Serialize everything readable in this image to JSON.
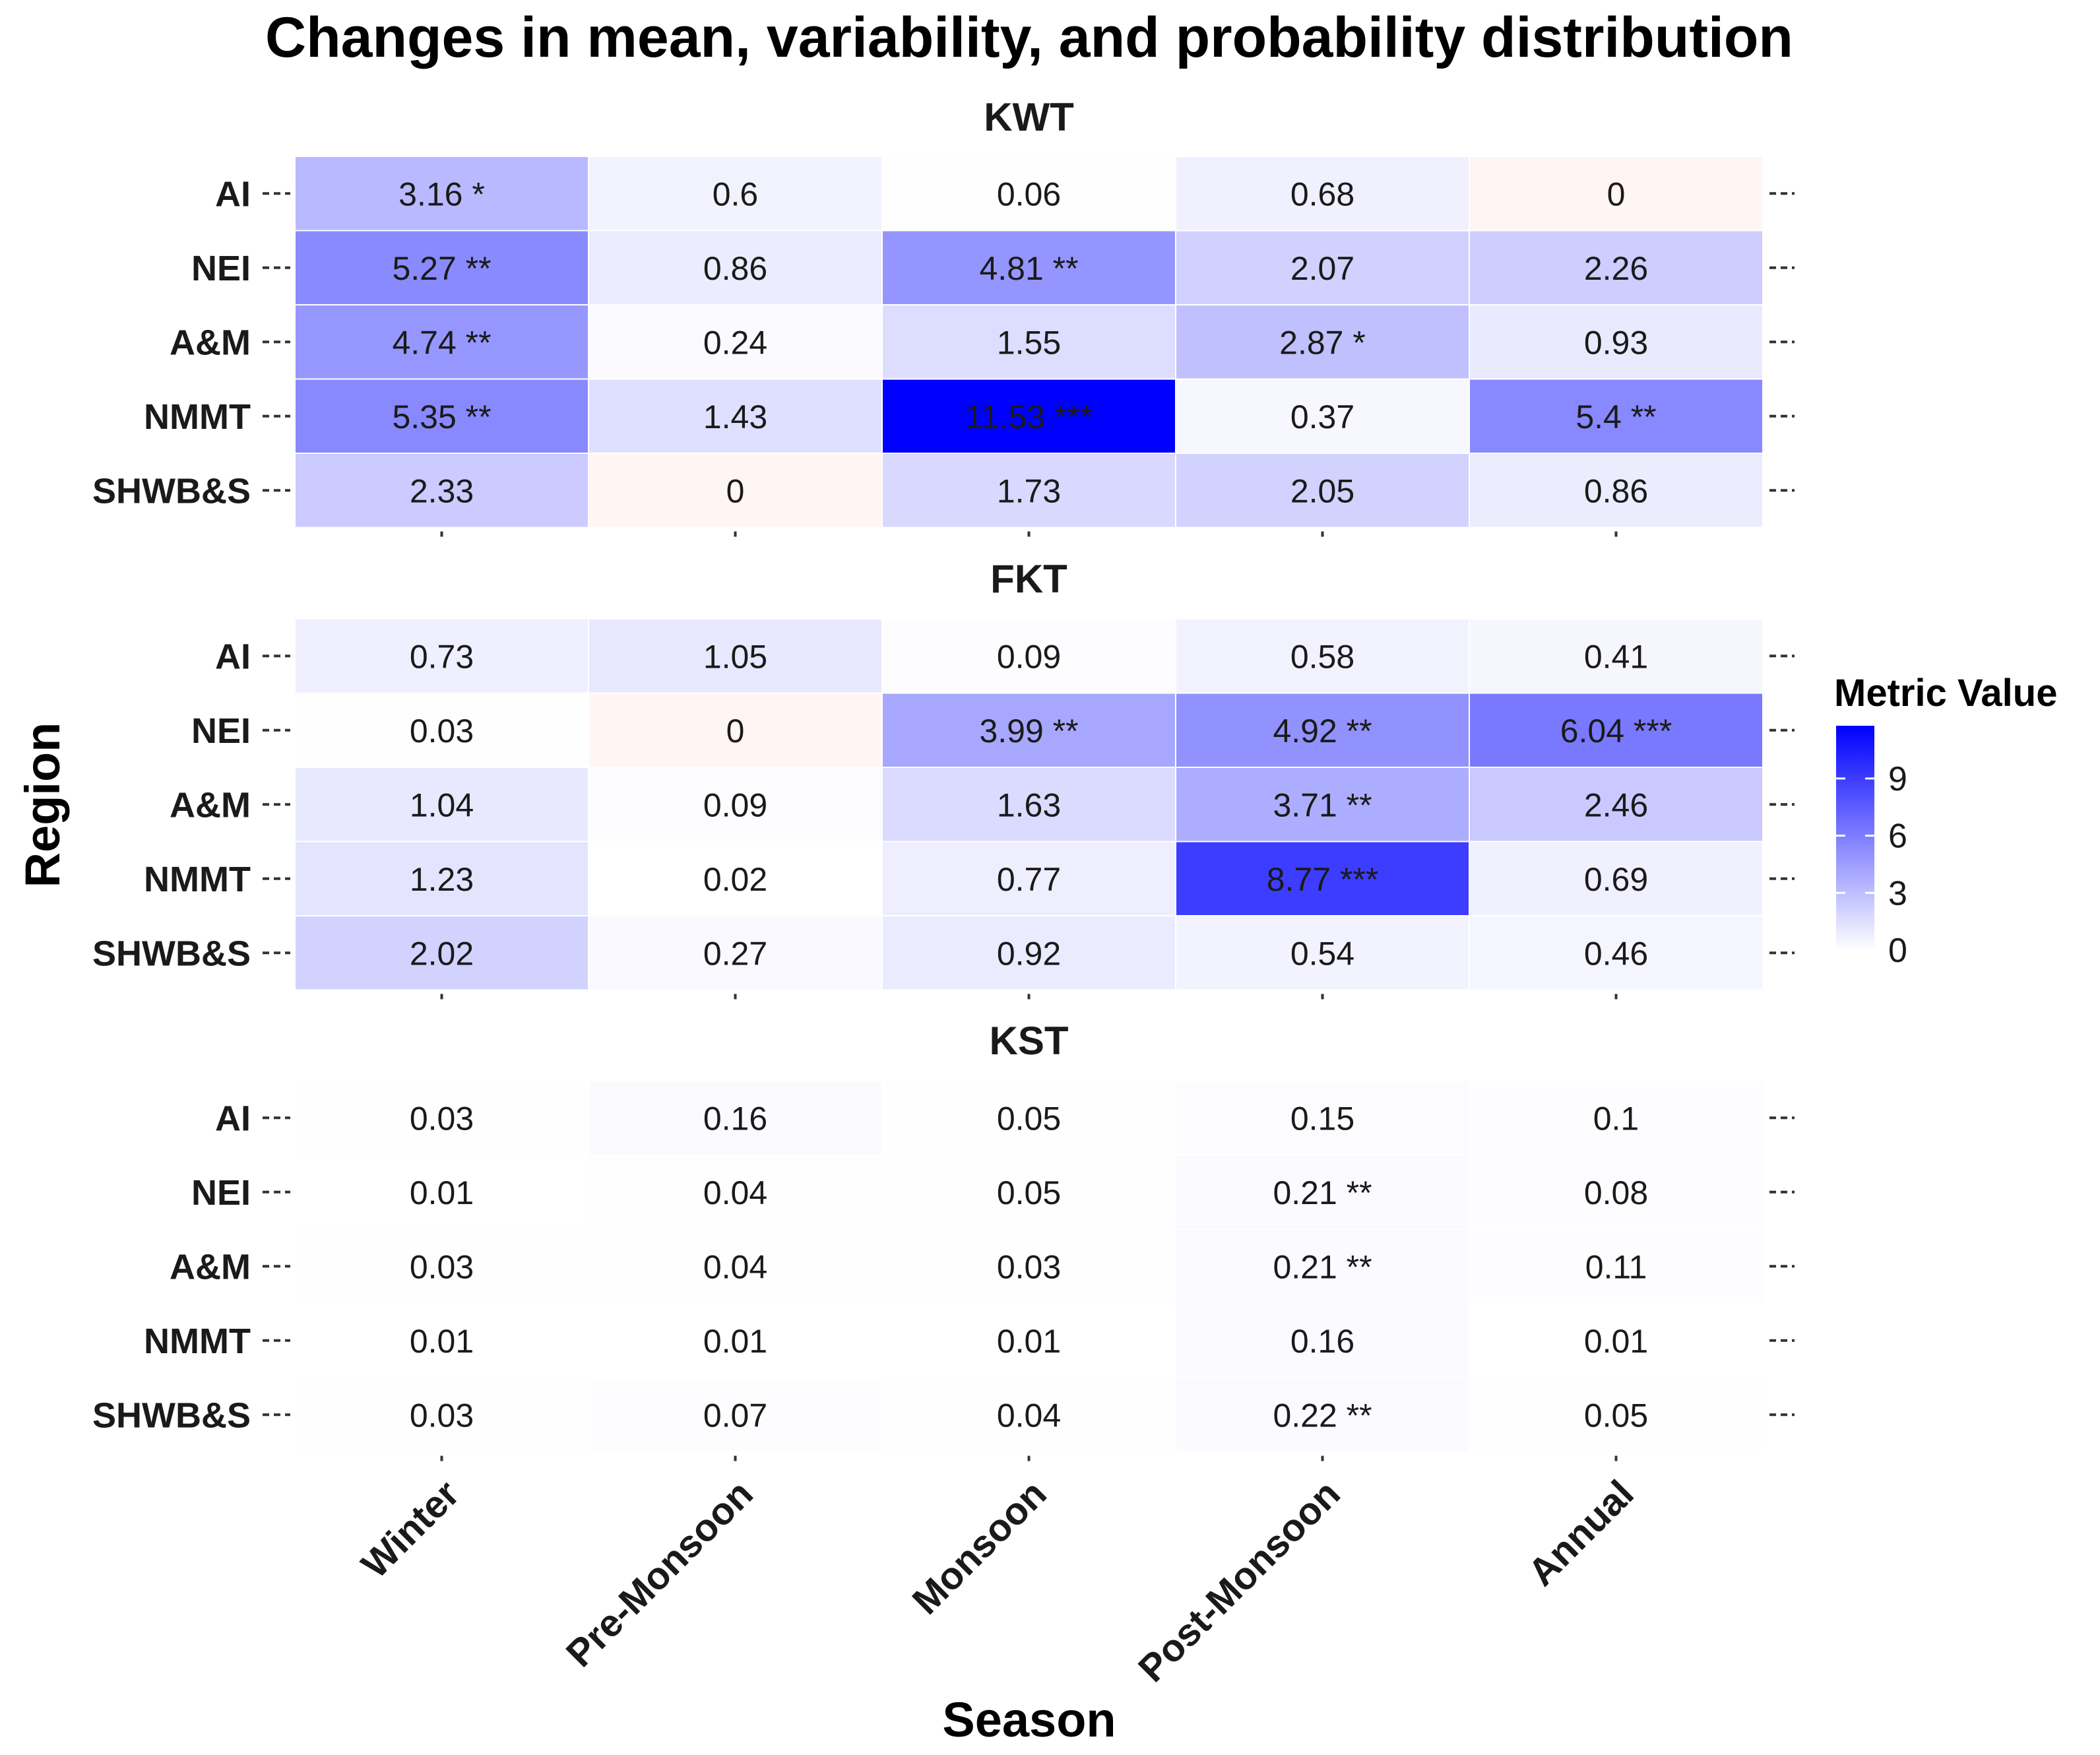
{
  "chart_data": {
    "type": "heatmap",
    "title": "Changes in mean, variability, and probability distribution",
    "xlabel": "Season",
    "ylabel": "Region",
    "seasons": [
      "Winter",
      "Pre-Monsoon",
      "Monsoon",
      "Post-Monsoon",
      "Annual"
    ],
    "regions": [
      "AI",
      "NEI",
      "A&M",
      "NMMT",
      "SHWB&S"
    ],
    "color_scale": {
      "low": "#ffffff",
      "high": "#0000ff",
      "zero_tint": "#fff5f2",
      "min": 0,
      "max": 11.53
    },
    "legend": {
      "title": "Metric Value",
      "ticks": [
        0,
        3,
        6,
        9
      ]
    },
    "panels": [
      {
        "name": "KWT",
        "values": [
          [
            3.16,
            0.6,
            0.06,
            0.68,
            0
          ],
          [
            5.27,
            0.86,
            4.81,
            2.07,
            2.26
          ],
          [
            4.74,
            0.24,
            1.55,
            2.87,
            0.93
          ],
          [
            5.35,
            1.43,
            11.53,
            0.37,
            5.4
          ],
          [
            2.33,
            0,
            1.73,
            2.05,
            0.86
          ]
        ],
        "labels": [
          [
            "3.16 *",
            "0.6",
            "0.06",
            "0.68",
            "0"
          ],
          [
            "5.27 **",
            "0.86",
            "4.81 **",
            "2.07",
            "2.26"
          ],
          [
            "4.74 **",
            "0.24",
            "1.55",
            "2.87 *",
            "0.93"
          ],
          [
            "5.35 **",
            "1.43",
            "11.53 ***",
            "0.37",
            "5.4 **"
          ],
          [
            "2.33",
            "0",
            "1.73",
            "2.05",
            "0.86"
          ]
        ]
      },
      {
        "name": "FKT",
        "values": [
          [
            0.73,
            1.05,
            0.09,
            0.58,
            0.41
          ],
          [
            0.03,
            0,
            3.99,
            4.92,
            6.04
          ],
          [
            1.04,
            0.09,
            1.63,
            3.71,
            2.46
          ],
          [
            1.23,
            0.02,
            0.77,
            8.77,
            0.69
          ],
          [
            2.02,
            0.27,
            0.92,
            0.54,
            0.46
          ]
        ],
        "labels": [
          [
            "0.73",
            "1.05",
            "0.09",
            "0.58",
            "0.41"
          ],
          [
            "0.03",
            "0",
            "3.99 **",
            "4.92 **",
            "6.04 ***"
          ],
          [
            "1.04",
            "0.09",
            "1.63",
            "3.71 **",
            "2.46"
          ],
          [
            "1.23",
            "0.02",
            "0.77",
            "8.77 ***",
            "0.69"
          ],
          [
            "2.02",
            "0.27",
            "0.92",
            "0.54",
            "0.46"
          ]
        ]
      },
      {
        "name": "KST",
        "values": [
          [
            0.03,
            0.16,
            0.05,
            0.15,
            0.1
          ],
          [
            0.01,
            0.04,
            0.05,
            0.21,
            0.08
          ],
          [
            0.03,
            0.04,
            0.03,
            0.21,
            0.11
          ],
          [
            0.01,
            0.01,
            0.01,
            0.16,
            0.01
          ],
          [
            0.03,
            0.07,
            0.04,
            0.22,
            0.05
          ]
        ],
        "labels": [
          [
            "0.03",
            "0.16",
            "0.05",
            "0.15",
            "0.1"
          ],
          [
            "0.01",
            "0.04",
            "0.05",
            "0.21 **",
            "0.08"
          ],
          [
            "0.03",
            "0.04",
            "0.03",
            "0.21 **",
            "0.11"
          ],
          [
            "0.01",
            "0.01",
            "0.01",
            "0.16",
            "0.01"
          ],
          [
            "0.03",
            "0.07",
            "0.04",
            "0.22 **",
            "0.05"
          ]
        ]
      }
    ]
  }
}
